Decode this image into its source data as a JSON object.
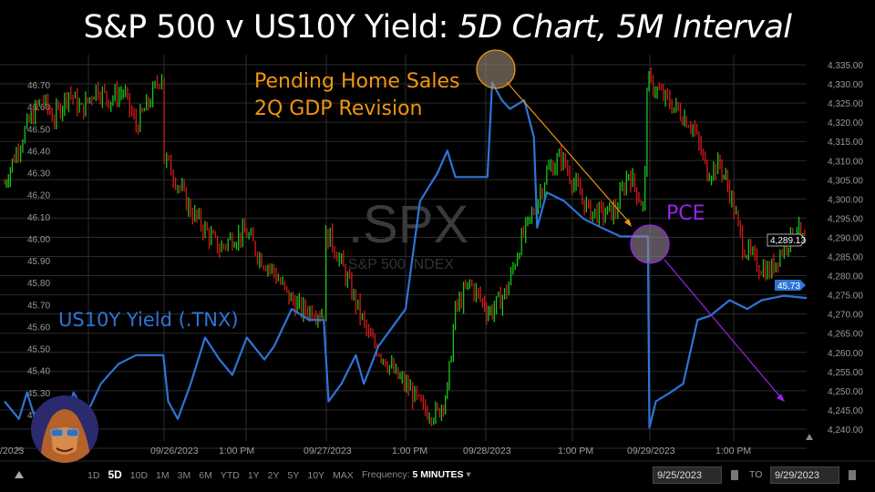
{
  "title": {
    "main": "S&P 500 v US10Y Yield: ",
    "italic": "5D Chart, 5M Interval"
  },
  "annotations": {
    "event1_line1": "Pending Home Sales",
    "event1_line2": "2Q GDP Revision",
    "event2": "PCE",
    "series_label": "US10Y Yield (.TNX)"
  },
  "colors": {
    "spx_up": "#19c619",
    "spx_down": "#d41a1a",
    "tnx": "#2e74d6",
    "event1": "#f0960f",
    "event2": "#9a22e8",
    "grid": "#2b2b2b"
  },
  "watermark": {
    "symbol": ".SPX",
    "name": "S&P 500 INDEX"
  },
  "chart_data": {
    "type": "line",
    "title": "S&P 500 v US10Y Yield: 5D Chart, 5M Interval",
    "x_unit": "trading days since 9/25/2023 open",
    "x_tick_labels": [
      "/2023",
      "PM",
      "09/26/2023",
      "1:00 PM",
      "09/27/2023",
      "1:00 PM",
      "09/28/2023",
      "1:00 PM",
      "09/29/2023",
      "1:00 PM"
    ],
    "left_axis": {
      "label": "US10Y Yield (.TNX)",
      "ylim": [
        45.15,
        46.75
      ],
      "ticks": [
        "46.70",
        "46.60",
        "46.50",
        "46.40",
        "46.30",
        "46.20",
        "46.10",
        "46.00",
        "45.90",
        "45.80",
        "45.70",
        "45.60",
        "45.50",
        "45.40",
        "45.30",
        "45.20"
      ]
    },
    "right_axis": {
      "label": ".SPX",
      "ylim": [
        4238,
        4337
      ],
      "ticks": [
        "4,335.00",
        "4,330.00",
        "4,325.00",
        "4,320.00",
        "4,315.00",
        "4,310.00",
        "4,305.00",
        "4,300.00",
        "4,295.00",
        "4,290.00",
        "4,285.00",
        "4,280.00",
        "4,275.00",
        "4,270.00",
        "4,265.00",
        "4,260.00",
        "4,255.00",
        "4,250.00",
        "4,245.00",
        "4,240.00"
      ]
    },
    "last_values": {
      "spx": "4,289.13",
      "tnx": "45.73"
    },
    "series": [
      {
        "name": ".SPX",
        "style": "candles",
        "axis": "right",
        "points": [
          [
            0,
            4304
          ],
          [
            0.06,
            4311
          ],
          [
            0.14,
            4319
          ],
          [
            0.23,
            4326
          ],
          [
            0.31,
            4321
          ],
          [
            0.4,
            4328
          ],
          [
            0.48,
            4323
          ],
          [
            0.57,
            4329
          ],
          [
            0.65,
            4326
          ],
          [
            0.74,
            4328
          ],
          [
            0.82,
            4319
          ],
          [
            0.91,
            4326
          ],
          [
            0.98,
            4333
          ],
          [
            1.01,
            4310
          ],
          [
            1.08,
            4304
          ],
          [
            1.16,
            4297
          ],
          [
            1.25,
            4292
          ],
          [
            1.34,
            4287
          ],
          [
            1.42,
            4290
          ],
          [
            1.51,
            4291
          ],
          [
            1.59,
            4285
          ],
          [
            1.68,
            4281
          ],
          [
            1.76,
            4275
          ],
          [
            1.85,
            4271
          ],
          [
            1.93,
            4271
          ],
          [
            1.99,
            4270
          ],
          [
            2.03,
            4290
          ],
          [
            2.1,
            4283
          ],
          [
            2.19,
            4273
          ],
          [
            2.27,
            4264
          ],
          [
            2.36,
            4259
          ],
          [
            2.44,
            4254
          ],
          [
            2.53,
            4250
          ],
          [
            2.61,
            4245
          ],
          [
            2.7,
            4244
          ],
          [
            2.76,
            4250
          ],
          [
            2.81,
            4271
          ],
          [
            2.9,
            4278
          ],
          [
            2.98,
            4273
          ],
          [
            3.04,
            4271
          ],
          [
            3.13,
            4276
          ],
          [
            3.21,
            4288
          ],
          [
            3.3,
            4297
          ],
          [
            3.38,
            4307
          ],
          [
            3.47,
            4311
          ],
          [
            3.55,
            4304
          ],
          [
            3.64,
            4297
          ],
          [
            3.72,
            4296
          ],
          [
            3.81,
            4297
          ],
          [
            3.89,
            4307
          ],
          [
            3.98,
            4298
          ],
          [
            4.03,
            4330
          ],
          [
            4.12,
            4326
          ],
          [
            4.2,
            4323
          ],
          [
            4.29,
            4319
          ],
          [
            4.38,
            4307
          ],
          [
            4.46,
            4309
          ],
          [
            4.52,
            4302
          ],
          [
            4.6,
            4288
          ],
          [
            4.69,
            4283
          ],
          [
            4.77,
            4281
          ],
          [
            4.86,
            4288
          ],
          [
            4.94,
            4292
          ],
          [
            5.0,
            4289.13
          ]
        ]
      },
      {
        "name": "US10Y Yield (.TNX)",
        "style": "line",
        "axis": "left",
        "points": [
          [
            0,
            45.26
          ],
          [
            0.09,
            45.18
          ],
          [
            0.14,
            45.3
          ],
          [
            0.2,
            45.16
          ],
          [
            0.28,
            45.26
          ],
          [
            0.37,
            45.16
          ],
          [
            0.43,
            45.3
          ],
          [
            0.51,
            45.2
          ],
          [
            0.6,
            45.34
          ],
          [
            0.71,
            45.43
          ],
          [
            0.82,
            45.47
          ],
          [
            0.99,
            45.47
          ],
          [
            1.02,
            45.26
          ],
          [
            1.08,
            45.18
          ],
          [
            1.16,
            45.34
          ],
          [
            1.25,
            45.55
          ],
          [
            1.34,
            45.45
          ],
          [
            1.42,
            45.38
          ],
          [
            1.51,
            45.55
          ],
          [
            1.62,
            45.45
          ],
          [
            1.68,
            45.51
          ],
          [
            1.79,
            45.68
          ],
          [
            1.9,
            45.63
          ],
          [
            1.99,
            45.63
          ],
          [
            2.02,
            45.26
          ],
          [
            2.1,
            45.34
          ],
          [
            2.19,
            45.47
          ],
          [
            2.24,
            45.34
          ],
          [
            2.33,
            45.51
          ],
          [
            2.41,
            45.59
          ],
          [
            2.5,
            45.68
          ],
          [
            2.59,
            46.17
          ],
          [
            2.7,
            46.3
          ],
          [
            2.76,
            46.4
          ],
          [
            2.81,
            46.28
          ],
          [
            3.01,
            46.28
          ],
          [
            3.04,
            46.71
          ],
          [
            3.1,
            46.63
          ],
          [
            3.15,
            46.59
          ],
          [
            3.24,
            46.63
          ],
          [
            3.3,
            46.46
          ],
          [
            3.32,
            46.05
          ],
          [
            3.38,
            46.21
          ],
          [
            3.49,
            46.17
          ],
          [
            3.61,
            46.09
          ],
          [
            3.72,
            46.05
          ],
          [
            3.84,
            46.01
          ],
          [
            4.01,
            46.01
          ],
          [
            4.02,
            45.14
          ],
          [
            4.06,
            45.26
          ],
          [
            4.15,
            45.3
          ],
          [
            4.23,
            45.34
          ],
          [
            4.32,
            45.63
          ],
          [
            4.4,
            45.65
          ],
          [
            4.52,
            45.72
          ],
          [
            4.63,
            45.68
          ],
          [
            4.72,
            45.72
          ],
          [
            4.86,
            45.74
          ],
          [
            5.0,
            45.73
          ]
        ]
      }
    ]
  },
  "toolbar": {
    "ranges": [
      "1D",
      "5D",
      "10D",
      "1M",
      "3M",
      "6M",
      "YTD",
      "1Y",
      "2Y",
      "5Y",
      "10Y",
      "MAX"
    ],
    "active_range": "5D",
    "frequency_label": "Frequency:",
    "frequency_value": "5 MINUTES",
    "from_date": "9/25/2023",
    "to_label": "TO",
    "to_date": "9/29/2023"
  }
}
